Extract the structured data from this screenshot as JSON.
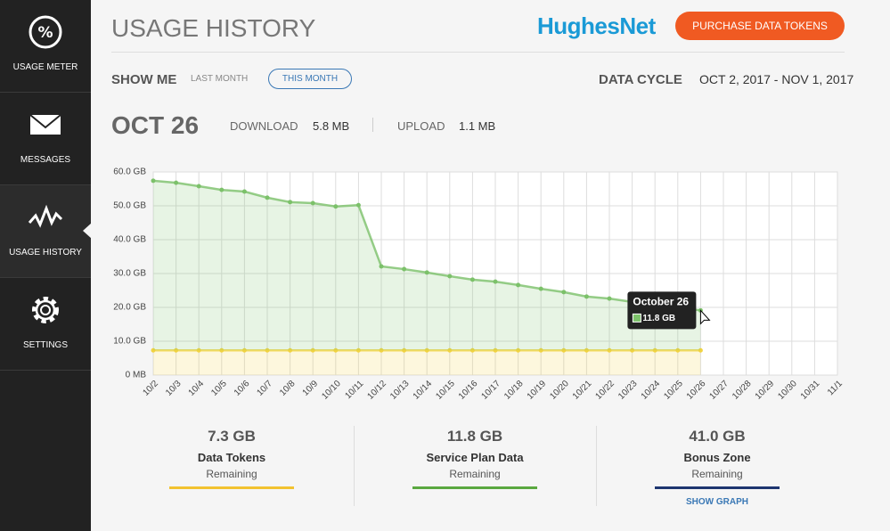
{
  "sidebar": {
    "items": [
      {
        "label": "USAGE METER"
      },
      {
        "label": "MESSAGES"
      },
      {
        "label": "USAGE HISTORY"
      },
      {
        "label": "SETTINGS"
      }
    ]
  },
  "header": {
    "title": "USAGE HISTORY",
    "brand": "HughesNet",
    "button": "PURCHASE DATA TOKENS"
  },
  "filters": {
    "label": "SHOW ME",
    "options": [
      "LAST MONTH",
      "THIS MONTH"
    ],
    "cycle_label": "DATA CYCLE",
    "cycle_value": "OCT 2, 2017 - NOV 1, 2017"
  },
  "day": {
    "date": "OCT 26",
    "download_label": "DOWNLOAD",
    "download_value": "5.8 MB",
    "upload_label": "UPLOAD",
    "upload_value": "1.1 MB"
  },
  "chart_data": {
    "type": "area",
    "stacked": true,
    "grid": true,
    "categories": [
      "10/2",
      "10/3",
      "10/4",
      "10/5",
      "10/6",
      "10/7",
      "10/8",
      "10/9",
      "10/10",
      "10/11",
      "10/12",
      "10/13",
      "10/14",
      "10/15",
      "10/16",
      "10/17",
      "10/18",
      "10/19",
      "10/20",
      "10/21",
      "10/22",
      "10/23",
      "10/24",
      "10/25",
      "10/26",
      "10/27",
      "10/28",
      "10/29",
      "10/30",
      "10/31",
      "11/1"
    ],
    "series": [
      {
        "color": "#f2d341",
        "values": [
          7.3,
          7.3,
          7.3,
          7.3,
          7.3,
          7.3,
          7.3,
          7.3,
          7.3,
          7.3,
          7.3,
          7.3,
          7.3,
          7.3,
          7.3,
          7.3,
          7.3,
          7.3,
          7.3,
          7.3,
          7.3,
          7.3,
          7.3,
          7.3,
          7.3,
          null,
          null,
          null,
          null,
          null,
          null
        ]
      },
      {
        "color": "#7cc16a",
        "values": [
          50.1,
          49.5,
          48.5,
          47.4,
          46.9,
          45.1,
          43.8,
          43.5,
          42.5,
          42.9,
          24.8,
          24.0,
          23.0,
          21.9,
          20.9,
          20.3,
          19.3,
          18.2,
          17.2,
          15.9,
          15.3,
          14.3,
          13.5,
          12.7,
          11.8,
          null,
          null,
          null,
          null,
          null,
          null
        ]
      }
    ],
    "ylim": [
      0,
      60
    ],
    "yticks": [
      {
        "value": 0,
        "label": "0 MB"
      },
      {
        "value": 10,
        "label": "10.0 GB"
      },
      {
        "value": 20,
        "label": "20.0 GB"
      },
      {
        "value": 30,
        "label": "30.0 GB"
      },
      {
        "value": 40,
        "label": "40.0 GB"
      },
      {
        "value": 50,
        "label": "50.0 GB"
      },
      {
        "value": 60,
        "label": "60.0 GB"
      }
    ],
    "tooltip": {
      "title": "October 26",
      "value_label": "11.8 GB"
    }
  },
  "summary": [
    {
      "value": "7.3 GB",
      "title": "Data Tokens",
      "subtitle": "Remaining",
      "color": "#f2c230"
    },
    {
      "value": "11.8 GB",
      "title": "Service Plan Data",
      "subtitle": "Remaining",
      "color": "#5aa840"
    },
    {
      "value": "41.0 GB",
      "title": "Bonus Zone",
      "subtitle": "Remaining",
      "color": "#1d3570",
      "link": "SHOW GRAPH"
    }
  ]
}
